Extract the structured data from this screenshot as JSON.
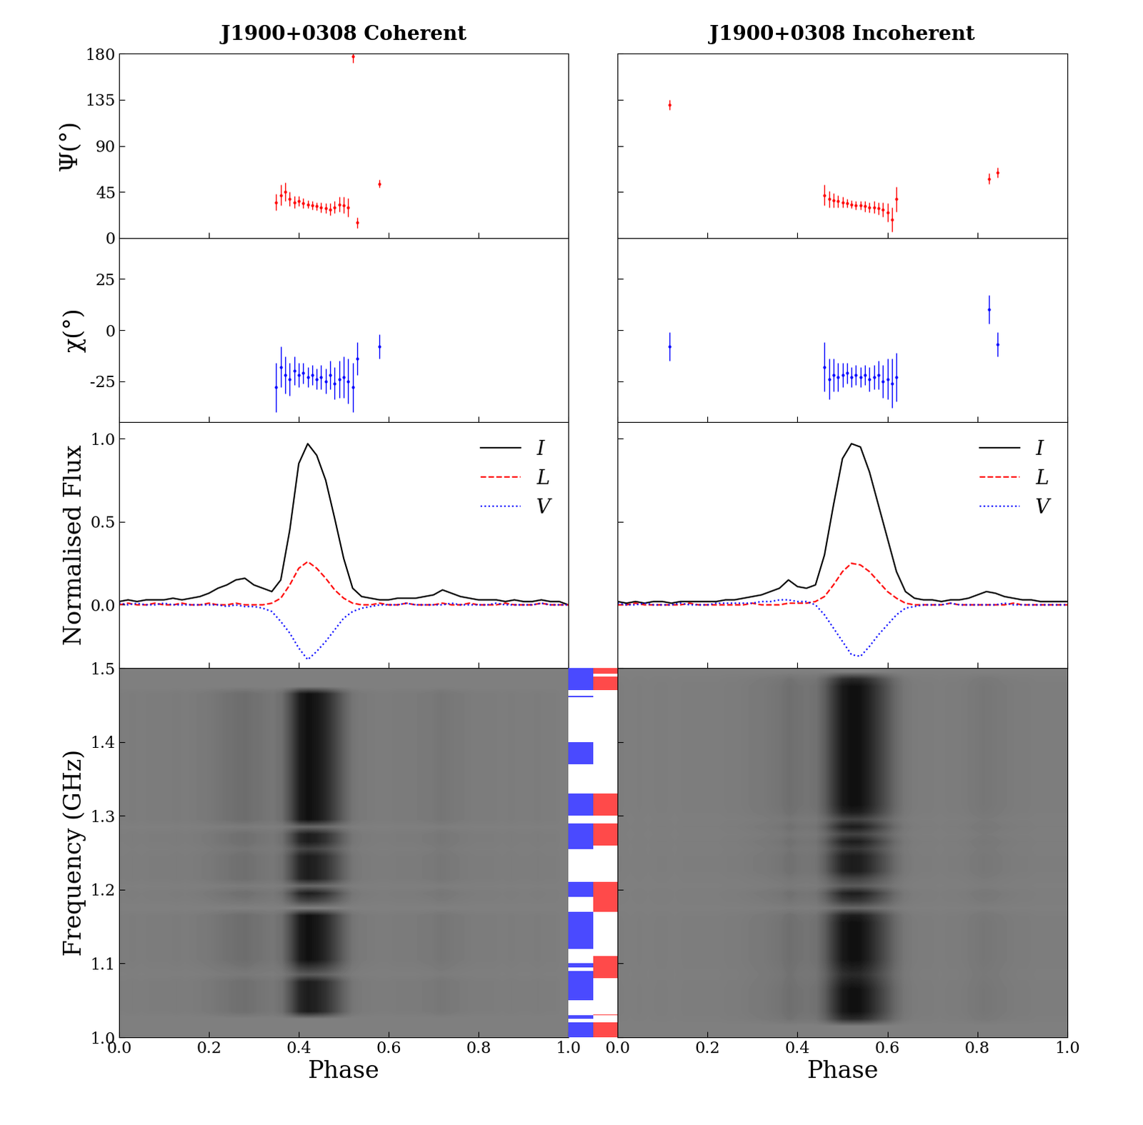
{
  "chart_data": [
    {
      "type": "pulsar_profile",
      "title": "J1900+0308 Coherent",
      "x_label": "Phase",
      "xlim": [
        0.0,
        1.0
      ],
      "xticks": [
        {
          "value": 0.0,
          "label": "0.0"
        },
        {
          "value": 0.2,
          "label": "0.2"
        },
        {
          "value": 0.4,
          "label": "0.4"
        },
        {
          "value": 0.6,
          "label": "0.6"
        },
        {
          "value": 0.8,
          "label": "0.8"
        },
        {
          "value": 1.0,
          "label": "1.0"
        }
      ],
      "pa": {
        "y_label": "Ψ(°)",
        "ylim": [
          0,
          180
        ],
        "yticks": [
          0,
          45,
          90,
          135,
          180
        ],
        "color": "red",
        "x": [
          0.35,
          0.36,
          0.37,
          0.38,
          0.39,
          0.4,
          0.41,
          0.42,
          0.43,
          0.44,
          0.45,
          0.46,
          0.47,
          0.48,
          0.49,
          0.5,
          0.51,
          0.52,
          0.53,
          0.58
        ],
        "values": [
          35,
          42,
          45,
          38,
          35,
          36,
          34,
          33,
          32,
          31,
          30,
          29,
          28,
          30,
          33,
          32,
          30,
          177,
          15,
          53
        ],
        "errors": [
          8,
          10,
          9,
          7,
          6,
          5,
          5,
          4,
          4,
          4,
          5,
          5,
          6,
          6,
          7,
          8,
          9,
          6,
          5,
          4
        ]
      },
      "ell": {
        "y_label": "χ(°)",
        "ylim": [
          -45,
          45
        ],
        "yticks": [
          -25,
          0,
          25
        ],
        "color": "blue",
        "x": [
          0.35,
          0.36,
          0.37,
          0.38,
          0.39,
          0.4,
          0.41,
          0.42,
          0.43,
          0.44,
          0.45,
          0.46,
          0.47,
          0.48,
          0.49,
          0.5,
          0.51,
          0.52,
          0.53,
          0.58
        ],
        "values": [
          -28,
          -18,
          -22,
          -24,
          -20,
          -22,
          -21,
          -23,
          -22,
          -24,
          -23,
          -25,
          -22,
          -26,
          -24,
          -23,
          -25,
          -28,
          -14,
          -8
        ],
        "errors": [
          12,
          10,
          9,
          8,
          7,
          6,
          5,
          5,
          5,
          5,
          6,
          6,
          7,
          8,
          9,
          10,
          11,
          12,
          8,
          6
        ]
      },
      "profile": {
        "y_label": "Normalised Flux",
        "ylim": [
          -0.38,
          1.1
        ],
        "yticks": [
          {
            "value": 0.0,
            "label": "0.0"
          },
          {
            "value": 0.5,
            "label": "0.5"
          },
          {
            "value": 1.0,
            "label": "1.0"
          }
        ],
        "legend": "upper right",
        "x": [
          0.0,
          0.02,
          0.04,
          0.06,
          0.08,
          0.1,
          0.12,
          0.14,
          0.16,
          0.18,
          0.2,
          0.22,
          0.24,
          0.26,
          0.28,
          0.3,
          0.32,
          0.34,
          0.36,
          0.38,
          0.4,
          0.42,
          0.44,
          0.46,
          0.48,
          0.5,
          0.52,
          0.54,
          0.56,
          0.58,
          0.6,
          0.62,
          0.64,
          0.66,
          0.68,
          0.7,
          0.72,
          0.74,
          0.76,
          0.78,
          0.8,
          0.82,
          0.84,
          0.86,
          0.88,
          0.9,
          0.92,
          0.94,
          0.96,
          0.98,
          1.0
        ],
        "series": [
          {
            "name": "I",
            "color": "black",
            "line_style": "solid",
            "values": [
              0.02,
              0.03,
              0.02,
              0.03,
              0.03,
              0.03,
              0.04,
              0.03,
              0.04,
              0.05,
              0.07,
              0.1,
              0.12,
              0.15,
              0.16,
              0.12,
              0.1,
              0.08,
              0.15,
              0.45,
              0.85,
              0.97,
              0.9,
              0.75,
              0.52,
              0.28,
              0.1,
              0.05,
              0.04,
              0.03,
              0.03,
              0.04,
              0.04,
              0.04,
              0.05,
              0.06,
              0.09,
              0.07,
              0.05,
              0.04,
              0.03,
              0.03,
              0.03,
              0.02,
              0.03,
              0.02,
              0.02,
              0.03,
              0.02,
              0.02,
              0.0
            ]
          },
          {
            "name": "L",
            "color": "red",
            "line_style": "dashed",
            "values": [
              0.0,
              0.01,
              0.0,
              0.0,
              0.01,
              0.0,
              0.0,
              0.01,
              0.0,
              0.0,
              0.01,
              0.0,
              0.0,
              0.01,
              0.0,
              0.0,
              0.0,
              0.01,
              0.04,
              0.12,
              0.22,
              0.26,
              0.22,
              0.16,
              0.09,
              0.04,
              0.01,
              0.0,
              0.0,
              0.01,
              0.0,
              0.0,
              0.01,
              0.0,
              0.0,
              0.0,
              0.01,
              0.0,
              0.0,
              0.01,
              0.0,
              0.0,
              0.0,
              0.01,
              0.0,
              0.0,
              0.0,
              0.01,
              0.0,
              0.0,
              0.0
            ]
          },
          {
            "name": "V",
            "color": "blue",
            "line_style": "dotted",
            "values": [
              0.01,
              0.0,
              0.01,
              0.0,
              0.0,
              0.01,
              0.0,
              0.0,
              0.0,
              0.0,
              0.0,
              0.0,
              -0.01,
              0.0,
              -0.01,
              -0.01,
              -0.02,
              -0.04,
              -0.1,
              -0.17,
              -0.26,
              -0.33,
              -0.28,
              -0.22,
              -0.15,
              -0.08,
              -0.04,
              -0.02,
              -0.01,
              0.0,
              0.0,
              0.0,
              0.01,
              0.0,
              0.0,
              0.0,
              0.0,
              0.01,
              0.0,
              0.0,
              0.0,
              0.0,
              0.01,
              0.0,
              0.0,
              0.0,
              0.0,
              0.01,
              0.0,
              0.0,
              0.0
            ]
          }
        ]
      },
      "waterfall": {
        "y_label": "Frequency (GHz)",
        "ylim": [
          1.0,
          1.5
        ],
        "yticks": [
          {
            "value": 1.0,
            "label": "1.0"
          },
          {
            "value": 1.1,
            "label": "1.1"
          },
          {
            "value": 1.2,
            "label": "1.2"
          },
          {
            "value": 1.3,
            "label": "1.3"
          },
          {
            "value": 1.4,
            "label": "1.4"
          },
          {
            "value": 1.5,
            "label": "1.5"
          }
        ],
        "channel_gain": [
          0,
          0,
          0,
          0.8,
          0.8,
          0.8,
          0.8,
          0.8,
          0.3,
          0.6,
          0.9,
          0.9,
          0.9,
          0.9,
          0.9,
          0.9,
          0.9,
          0,
          0.5,
          0.8,
          0.2,
          0.8,
          0.8,
          0.8,
          0.8,
          0.5,
          0.8,
          0.8,
          0.2,
          0.9,
          0.9,
          0.9,
          0.9,
          0.9,
          0.9,
          0.9,
          0.9,
          0.9,
          0.9,
          0.9,
          0.9,
          0.9,
          0.9,
          0.9,
          0.9,
          0.9,
          0.9,
          0,
          0,
          0
        ]
      }
    },
    {
      "type": "pulsar_profile",
      "title": "J1900+0308 Incoherent",
      "x_label": "Phase",
      "xlim": [
        0.0,
        1.0
      ],
      "xticks": [
        {
          "value": 0.0,
          "label": "0.0"
        },
        {
          "value": 0.2,
          "label": "0.2"
        },
        {
          "value": 0.4,
          "label": "0.4"
        },
        {
          "value": 0.6,
          "label": "0.6"
        },
        {
          "value": 0.8,
          "label": "0.8"
        },
        {
          "value": 1.0,
          "label": "1.0"
        }
      ],
      "pa": {
        "ylim": [
          0,
          180
        ],
        "yticks": [
          0,
          45,
          90,
          135,
          180
        ],
        "color": "red",
        "x": [
          0.115,
          0.46,
          0.47,
          0.48,
          0.49,
          0.5,
          0.51,
          0.52,
          0.53,
          0.54,
          0.55,
          0.56,
          0.57,
          0.58,
          0.59,
          0.6,
          0.61,
          0.62,
          0.825,
          0.845
        ],
        "values": [
          130,
          42,
          38,
          37,
          36,
          35,
          34,
          33,
          32,
          32,
          31,
          30,
          30,
          29,
          28,
          25,
          18,
          38,
          58,
          64
        ],
        "errors": [
          5,
          10,
          8,
          7,
          6,
          5,
          4,
          4,
          4,
          4,
          5,
          5,
          6,
          6,
          7,
          9,
          12,
          12,
          5,
          5
        ]
      },
      "ell": {
        "ylim": [
          -45,
          45
        ],
        "yticks": [
          -25,
          0,
          25
        ],
        "color": "blue",
        "x": [
          0.115,
          0.46,
          0.47,
          0.48,
          0.49,
          0.5,
          0.51,
          0.52,
          0.53,
          0.54,
          0.55,
          0.56,
          0.57,
          0.58,
          0.59,
          0.6,
          0.61,
          0.62,
          0.825,
          0.845
        ],
        "values": [
          -8,
          -18,
          -24,
          -22,
          -23,
          -22,
          -21,
          -23,
          -22,
          -23,
          -22,
          -24,
          -23,
          -22,
          -25,
          -24,
          -26,
          -23,
          10,
          -7
        ],
        "errors": [
          7,
          12,
          10,
          8,
          7,
          6,
          5,
          5,
          5,
          5,
          5,
          6,
          6,
          7,
          8,
          10,
          12,
          12,
          7,
          6
        ]
      },
      "profile": {
        "ylim": [
          -0.38,
          1.1
        ],
        "yticks": [
          {
            "value": 0.0,
            "label": "0.0"
          },
          {
            "value": 0.5,
            "label": "0.5"
          },
          {
            "value": 1.0,
            "label": "1.0"
          }
        ],
        "legend": "upper right",
        "x": [
          0.0,
          0.02,
          0.04,
          0.06,
          0.08,
          0.1,
          0.12,
          0.14,
          0.16,
          0.18,
          0.2,
          0.22,
          0.24,
          0.26,
          0.28,
          0.3,
          0.32,
          0.34,
          0.36,
          0.38,
          0.4,
          0.42,
          0.44,
          0.46,
          0.48,
          0.5,
          0.52,
          0.54,
          0.56,
          0.58,
          0.6,
          0.62,
          0.64,
          0.66,
          0.68,
          0.7,
          0.72,
          0.74,
          0.76,
          0.78,
          0.8,
          0.82,
          0.84,
          0.86,
          0.88,
          0.9,
          0.92,
          0.94,
          0.96,
          0.98,
          1.0
        ],
        "series": [
          {
            "name": "I",
            "color": "black",
            "line_style": "solid",
            "values": [
              0.02,
              0.01,
              0.02,
              0.01,
              0.02,
              0.02,
              0.01,
              0.02,
              0.02,
              0.02,
              0.02,
              0.02,
              0.03,
              0.03,
              0.04,
              0.05,
              0.06,
              0.08,
              0.1,
              0.15,
              0.11,
              0.1,
              0.12,
              0.3,
              0.6,
              0.88,
              0.97,
              0.95,
              0.8,
              0.6,
              0.4,
              0.2,
              0.08,
              0.04,
              0.03,
              0.03,
              0.02,
              0.03,
              0.03,
              0.04,
              0.06,
              0.08,
              0.07,
              0.05,
              0.04,
              0.03,
              0.03,
              0.02,
              0.02,
              0.02,
              0.02
            ]
          },
          {
            "name": "L",
            "color": "red",
            "line_style": "dashed",
            "values": [
              0.0,
              0.0,
              0.01,
              0.0,
              0.0,
              0.0,
              0.0,
              0.0,
              0.01,
              0.0,
              0.0,
              0.0,
              0.0,
              0.0,
              0.0,
              0.01,
              0.0,
              0.0,
              0.0,
              0.01,
              0.01,
              0.01,
              0.02,
              0.05,
              0.12,
              0.2,
              0.25,
              0.24,
              0.2,
              0.14,
              0.08,
              0.04,
              0.01,
              0.0,
              0.0,
              0.0,
              0.0,
              0.01,
              0.0,
              0.0,
              0.0,
              0.0,
              0.0,
              0.0,
              0.01,
              0.0,
              0.0,
              0.0,
              0.0,
              0.0,
              0.0
            ]
          },
          {
            "name": "V",
            "color": "blue",
            "line_style": "dotted",
            "values": [
              0.01,
              0.0,
              0.0,
              0.01,
              0.0,
              0.0,
              0.0,
              0.01,
              0.0,
              0.0,
              0.0,
              0.01,
              0.01,
              0.01,
              0.01,
              0.01,
              0.02,
              0.02,
              0.03,
              0.03,
              0.02,
              0.02,
              0.0,
              -0.06,
              -0.14,
              -0.22,
              -0.3,
              -0.31,
              -0.25,
              -0.18,
              -0.12,
              -0.06,
              -0.02,
              -0.01,
              0.0,
              0.0,
              0.0,
              0.01,
              0.0,
              0.0,
              0.0,
              0.0,
              0.0,
              0.01,
              0.0,
              0.0,
              0.0,
              0.0,
              0.0,
              0.0,
              0.0
            ]
          }
        ]
      },
      "waterfall": {
        "ylim": [
          1.0,
          1.5
        ],
        "yticks": [
          {
            "value": 1.0,
            "label": "1.0"
          },
          {
            "value": 1.1,
            "label": "1.1"
          },
          {
            "value": 1.2,
            "label": "1.2"
          },
          {
            "value": 1.3,
            "label": "1.3"
          },
          {
            "value": 1.4,
            "label": "1.4"
          },
          {
            "value": 1.5,
            "label": "1.5"
          }
        ],
        "channel_gain": [
          0,
          0,
          0.7,
          0.9,
          0.9,
          0.9,
          0.9,
          0.8,
          0.7,
          0.8,
          0.9,
          0.9,
          0.9,
          0.9,
          0.9,
          0.9,
          0.8,
          0.2,
          0.6,
          0.8,
          0.3,
          0.5,
          0.8,
          0.8,
          0.8,
          0.6,
          0.8,
          0.5,
          0.8,
          0.5,
          0.8,
          0.9,
          0.9,
          0.9,
          0.9,
          0.9,
          0.9,
          0.9,
          0.9,
          0.9,
          0.9,
          0.9,
          0.9,
          0.9,
          0.9,
          0.9,
          0.9,
          0.9,
          0.7,
          0
        ]
      }
    },
    {
      "type": "channel_mask",
      "ylim": [
        1.0,
        1.5
      ],
      "series": [
        {
          "color": "#4a4aff",
          "ranges": [
            [
              1.0,
              1.02
            ],
            [
              1.025,
              1.03
            ],
            [
              1.05,
              1.09
            ],
            [
              1.095,
              1.1
            ],
            [
              1.12,
              1.17
            ],
            [
              1.19,
              1.21
            ],
            [
              1.255,
              1.29
            ],
            [
              1.3,
              1.33
            ],
            [
              1.37,
              1.4
            ],
            [
              1.46,
              1.462
            ],
            [
              1.47,
              1.5
            ]
          ]
        },
        {
          "color": "#ff4a4a",
          "ranges": [
            [
              1.0,
              1.02
            ],
            [
              1.03,
              1.031
            ],
            [
              1.08,
              1.11
            ],
            [
              1.17,
              1.21
            ],
            [
              1.26,
              1.29
            ],
            [
              1.3,
              1.33
            ],
            [
              1.47,
              1.488
            ],
            [
              1.492,
              1.5
            ]
          ]
        }
      ]
    }
  ]
}
